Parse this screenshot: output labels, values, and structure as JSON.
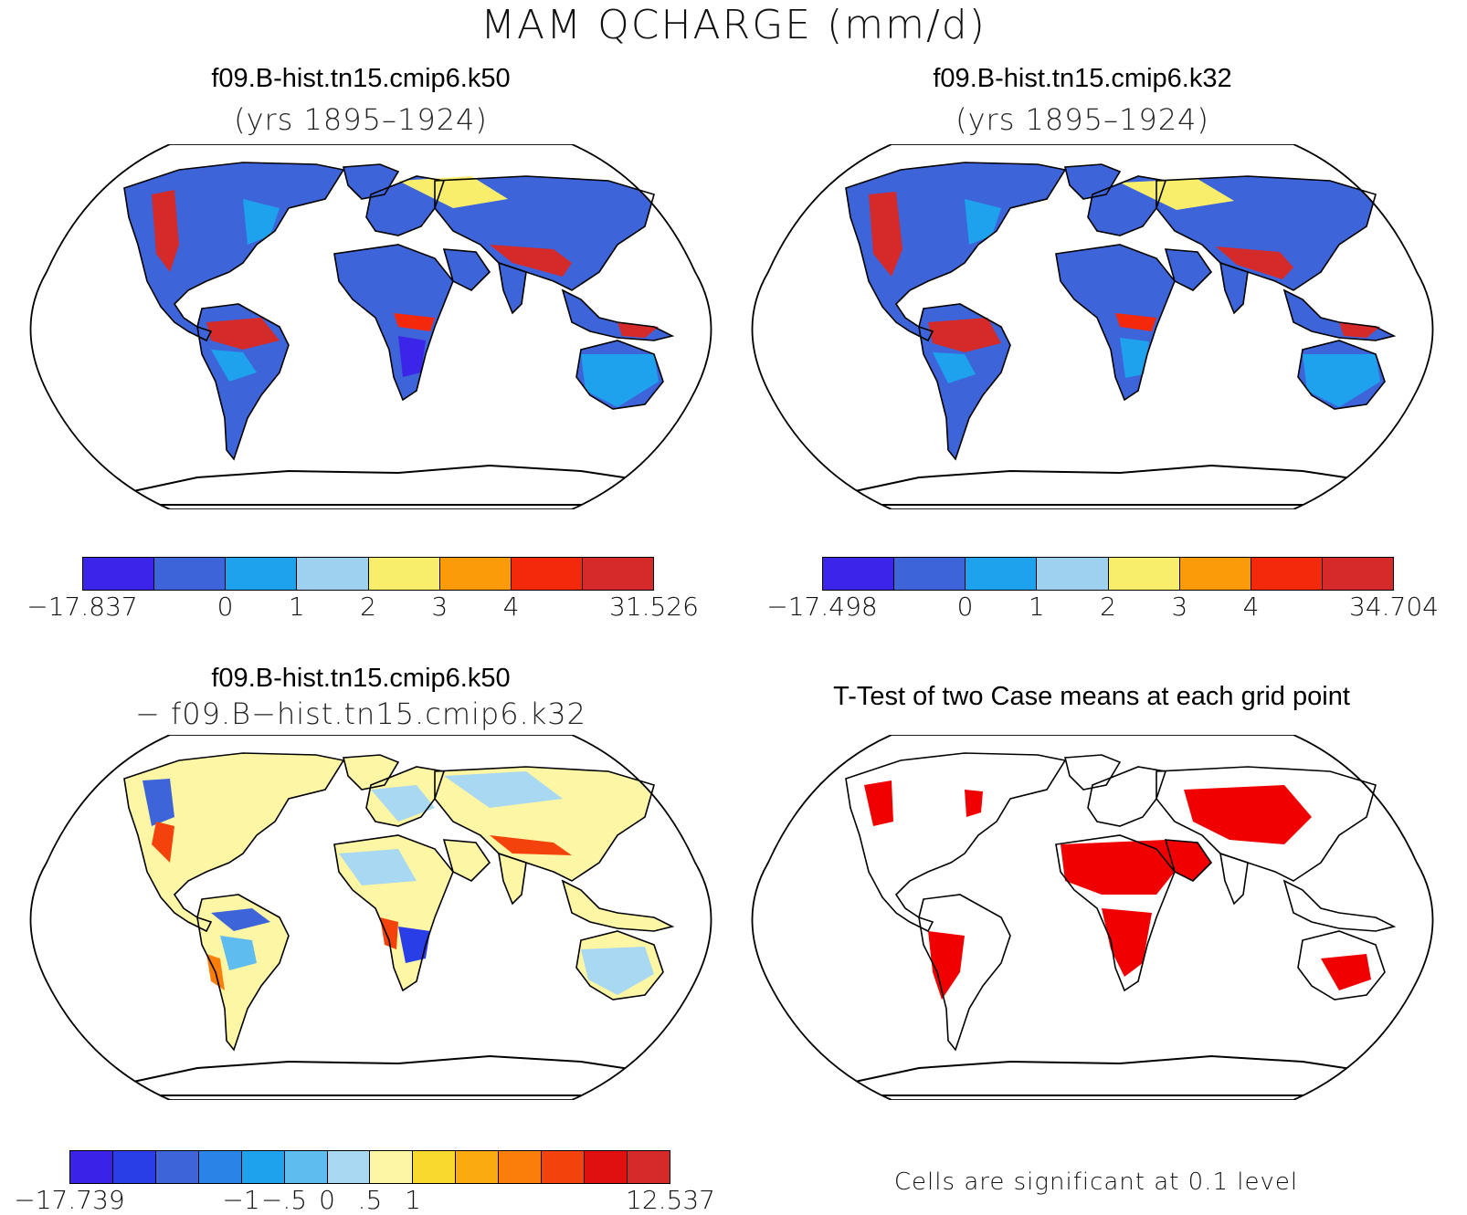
{
  "title": "MAM QCHARGE (mm/d)",
  "panels": [
    {
      "id": "k50",
      "case_name": "f09.B-hist.tn15.cmip6.k50",
      "subtitle": "(yrs 1895–1924)",
      "colorbar": {
        "colors": [
          "#3b25e8",
          "#3d64d9",
          "#1ea2ee",
          "#9ed1ef",
          "#f8ee6c",
          "#fb9b0a",
          "#f4290c",
          "#d52a2a"
        ],
        "labels": [
          "−17.837",
          "0",
          "1",
          "2",
          "3",
          "4",
          "31.526"
        ]
      }
    },
    {
      "id": "k32",
      "case_name": "f09.B-hist.tn15.cmip6.k32",
      "subtitle": "(yrs 1895–1924)",
      "colorbar": {
        "colors": [
          "#3b25e8",
          "#3d64d9",
          "#1ea2ee",
          "#9ed1ef",
          "#f8ee6c",
          "#fb9b0a",
          "#f4290c",
          "#d52a2a"
        ],
        "labels": [
          "−17.498",
          "0",
          "1",
          "2",
          "3",
          "4",
          "34.704"
        ]
      }
    },
    {
      "id": "diff",
      "case_name": "f09.B-hist.tn15.cmip6.k50",
      "subtitle": "− f09.B−hist.tn15.cmip6.k32",
      "colorbar": {
        "colors": [
          "#3a22e6",
          "#2a3ee8",
          "#3d64d9",
          "#2a83e6",
          "#1ea2ee",
          "#5fbcef",
          "#a9d8f2",
          "#fdf6a4",
          "#f9d92e",
          "#fbaa10",
          "#fb7d0a",
          "#f4420c",
          "#e01010",
          "#d52a2a"
        ],
        "labels": [
          "−17.739",
          "−1",
          "−.5",
          "0",
          ".5",
          "1",
          "12.537"
        ]
      }
    },
    {
      "id": "ttest",
      "case_name": "T-Test of two Case means at each grid point",
      "note": "Cells are significant at 0.1 level",
      "sig_color": "#f00000"
    }
  ]
}
